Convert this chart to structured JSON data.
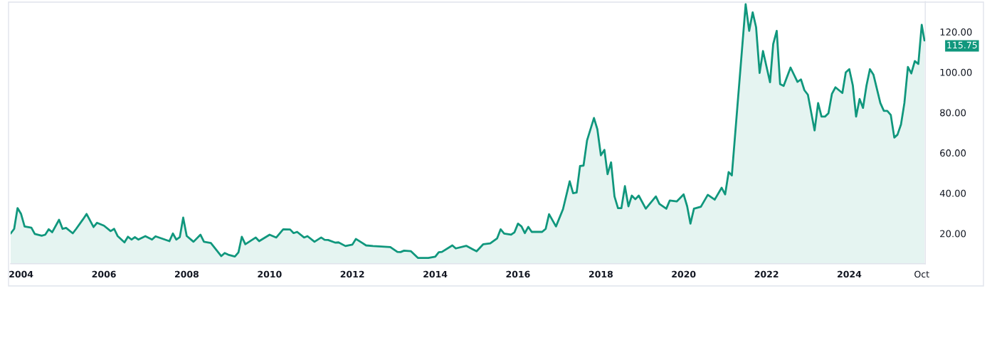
{
  "chart_data": {
    "type": "area",
    "x": [
      "2003-10",
      "2003-11",
      "2003-12",
      "2004-01",
      "2004-02",
      "2004-04",
      "2004-05",
      "2004-07",
      "2004-08",
      "2004-09",
      "2004-10",
      "2004-12",
      "2005-01",
      "2005-02",
      "2005-04",
      "2005-05",
      "2005-07",
      "2005-08",
      "2005-10",
      "2005-11",
      "2006-01",
      "2006-03",
      "2006-04",
      "2006-05",
      "2006-07",
      "2006-08",
      "2006-09",
      "2006-10",
      "2006-11",
      "2007-01",
      "2007-03",
      "2007-04",
      "2007-08",
      "2007-09",
      "2007-10",
      "2007-11",
      "2007-12",
      "2008-01",
      "2008-03",
      "2008-05",
      "2008-06",
      "2008-08",
      "2008-11",
      "2008-12",
      "2009-01",
      "2009-03",
      "2009-04",
      "2009-05",
      "2009-06",
      "2009-09",
      "2009-10",
      "2010-01",
      "2010-03",
      "2010-05",
      "2010-07",
      "2010-08",
      "2010-09",
      "2010-11",
      "2010-12",
      "2011-02",
      "2011-04",
      "2011-05",
      "2011-06",
      "2011-08",
      "2011-09",
      "2011-11",
      "2012-01",
      "2012-02",
      "2012-05",
      "2012-07",
      "2012-12",
      "2013-02",
      "2013-03",
      "2013-04",
      "2013-06",
      "2013-08",
      "2013-11",
      "2014-01",
      "2014-02",
      "2014-03",
      "2014-06",
      "2014-07",
      "2014-10",
      "2014-12",
      "2015-01",
      "2015-03",
      "2015-05",
      "2015-07",
      "2015-08",
      "2015-09",
      "2015-11",
      "2015-12",
      "2016-01",
      "2016-02",
      "2016-03",
      "2016-04",
      "2016-05",
      "2016-08",
      "2016-09",
      "2016-10",
      "2016-12",
      "2017-02",
      "2017-04",
      "2017-05",
      "2017-06",
      "2017-07",
      "2017-08",
      "2017-09",
      "2017-11",
      "2017-12",
      "2018-01",
      "2018-02",
      "2018-03",
      "2018-04",
      "2018-05",
      "2018-06",
      "2018-07",
      "2018-08",
      "2018-09",
      "2018-10",
      "2018-11",
      "2018-12",
      "2019-02",
      "2019-05",
      "2019-06",
      "2019-08",
      "2019-09",
      "2019-11",
      "2020-01",
      "2020-02",
      "2020-03",
      "2020-04",
      "2020-06",
      "2020-08",
      "2020-10",
      "2020-12",
      "2021-01",
      "2021-02",
      "2021-03",
      "2021-07",
      "2021-08",
      "2021-09",
      "2021-10",
      "2021-11",
      "2021-12",
      "2022-02",
      "2022-03",
      "2022-04",
      "2022-05",
      "2022-06",
      "2022-08",
      "2022-10",
      "2022-11",
      "2022-12",
      "2023-01",
      "2023-03",
      "2023-04",
      "2023-05",
      "2023-06",
      "2023-07",
      "2023-08",
      "2023-09",
      "2023-11",
      "2023-12",
      "2024-01",
      "2024-02",
      "2024-03",
      "2024-04",
      "2024-05",
      "2024-06",
      "2024-07",
      "2024-08",
      "2024-10",
      "2024-11",
      "2024-12",
      "2025-01",
      "2025-02",
      "2025-03",
      "2025-04",
      "2025-05",
      "2025-06",
      "2025-07",
      "2025-08",
      "2025-09",
      "2025-10",
      "2025-10-25"
    ],
    "series": [
      {
        "color": "#10977d",
        "values": [
          20.0,
          22.3,
          32.6,
          29.7,
          23.5,
          22.9,
          19.8,
          18.9,
          19.4,
          22.1,
          20.6,
          26.8,
          22.3,
          22.8,
          20.1,
          22.3,
          27.1,
          29.7,
          23.2,
          25.3,
          23.9,
          21.2,
          22.3,
          18.8,
          15.6,
          18.4,
          17.0,
          18.2,
          17.0,
          18.7,
          17.0,
          18.6,
          16.2,
          20.0,
          17.0,
          18.2,
          27.9,
          18.8,
          15.9,
          19.4,
          15.9,
          15.3,
          8.8,
          10.3,
          9.5,
          8.6,
          10.6,
          18.4,
          14.7,
          18.0,
          16.2,
          19.4,
          18.0,
          22.1,
          22.0,
          20.2,
          20.8,
          18.0,
          18.7,
          15.9,
          18.0,
          16.9,
          16.8,
          15.5,
          15.6,
          13.8,
          14.5,
          17.3,
          14.1,
          13.8,
          13.3,
          10.9,
          10.8,
          11.5,
          11.2,
          7.9,
          7.9,
          8.5,
          10.7,
          10.9,
          14.1,
          12.6,
          13.9,
          12.1,
          11.2,
          14.7,
          15.1,
          17.6,
          22.1,
          20.0,
          19.4,
          20.6,
          24.9,
          23.5,
          20.2,
          23.3,
          20.8,
          20.8,
          22.3,
          29.6,
          23.5,
          32.1,
          45.9,
          40.0,
          40.3,
          53.5,
          53.7,
          66.2,
          77.3,
          71.7,
          58.8,
          61.5,
          49.4,
          55.3,
          38.4,
          32.6,
          32.6,
          43.5,
          33.5,
          38.8,
          37.0,
          38.8,
          32.3,
          38.4,
          34.7,
          32.3,
          36.4,
          35.9,
          39.4,
          33.5,
          24.9,
          32.3,
          33.3,
          39.2,
          36.8,
          42.7,
          39.4,
          50.5,
          48.8,
          133.7,
          120.5,
          129.7,
          122.3,
          99.6,
          110.5,
          95.0,
          114.0,
          120.5,
          94.1,
          93.2,
          102.3,
          95.2,
          96.4,
          91.1,
          88.8,
          71.1,
          84.7,
          78.0,
          78.0,
          79.6,
          89.3,
          92.5,
          89.7,
          99.9,
          101.5,
          93.5,
          78.0,
          86.7,
          82.3,
          93.5,
          101.5,
          98.8,
          84.7,
          80.8,
          80.8,
          78.8,
          67.6,
          69.0,
          74.1,
          84.7,
          102.6,
          99.4,
          105.5,
          104.1,
          123.5,
          115.75
        ]
      }
    ],
    "xlim": [
      "2003-10",
      "2025-11"
    ],
    "xticks": [
      {
        "value": "2004",
        "label": "2004"
      },
      {
        "value": "2006",
        "label": "2006"
      },
      {
        "value": "2008",
        "label": "2008"
      },
      {
        "value": "2010",
        "label": "2010"
      },
      {
        "value": "2012",
        "label": "2012"
      },
      {
        "value": "2014",
        "label": "2014"
      },
      {
        "value": "2016",
        "label": "2016"
      },
      {
        "value": "2018",
        "label": "2018"
      },
      {
        "value": "2020",
        "label": "2020"
      },
      {
        "value": "2022",
        "label": "2022"
      },
      {
        "value": "2024",
        "label": "2024"
      },
      {
        "value": "2025-10",
        "label": "Oct"
      }
    ],
    "ylim": [
      5,
      135
    ],
    "yticks": [
      {
        "value": 20,
        "label": "20.00"
      },
      {
        "value": 40,
        "label": "40.00"
      },
      {
        "value": 60,
        "label": "60.00"
      },
      {
        "value": 80,
        "label": "80.00"
      },
      {
        "value": 100,
        "label": "100.00"
      },
      {
        "value": 120,
        "label": "120.00"
      }
    ],
    "annotations": [
      {
        "text": "115.75",
        "x": "2025-10-25",
        "y": 115.75
      }
    ]
  }
}
